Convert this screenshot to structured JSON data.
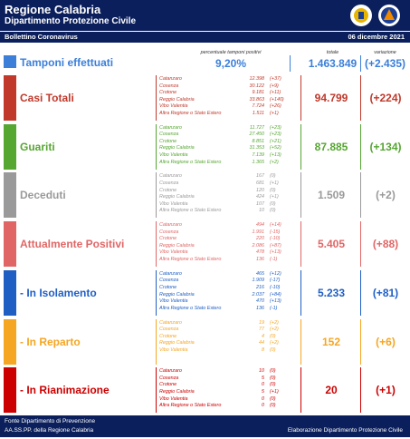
{
  "header": {
    "title": "Regione Calabria",
    "subtitle": "Dipartimento Protezione Civile",
    "bulletin": "Bollettino Coronavirus",
    "date": "06 dicembre 2021"
  },
  "tamponi": {
    "label": "Tamponi effettuati",
    "color": "#3b7fd9",
    "percent_label": "percentuale tamponi positivi",
    "percent": "9,20%",
    "total_label": "totale",
    "total": "1.463.849",
    "change_label": "variazione",
    "change": "(+2.435)"
  },
  "sections": [
    {
      "label": "Casi Totali",
      "color": "#c0392b",
      "total": "94.799",
      "change": "(+224)",
      "rows": [
        {
          "region": "Catanzaro",
          "value": "12.398",
          "change": "(+37)"
        },
        {
          "region": "Cosenza",
          "value": "30.122",
          "change": "(+9)"
        },
        {
          "region": "Crotone",
          "value": "9.181",
          "change": "(+11)"
        },
        {
          "region": "Reggio Calabria",
          "value": "33.863",
          "change": "(+140)"
        },
        {
          "region": "Vibo Valentia",
          "value": "7.724",
          "change": "(+26)"
        },
        {
          "region": "Altra Regione o Stato Estero",
          "value": "1.511",
          "change": "(+1)"
        }
      ]
    },
    {
      "label": "Guariti",
      "color": "#56a632",
      "total": "87.885",
      "change": "(+134)",
      "rows": [
        {
          "region": "Catanzaro",
          "value": "11.727",
          "change": "(+23)"
        },
        {
          "region": "Cosenza",
          "value": "27.450",
          "change": "(+23)"
        },
        {
          "region": "Crotone",
          "value": "8.851",
          "change": "(+21)"
        },
        {
          "region": "Reggio Calabria",
          "value": "31.353",
          "change": "(+52)"
        },
        {
          "region": "Vibo Valentia",
          "value": "7.139",
          "change": "(+13)"
        },
        {
          "region": "Altra Regione o Stato Estero",
          "value": "1.365",
          "change": "(+2)"
        }
      ]
    },
    {
      "label": "Deceduti",
      "color": "#9a9a9a",
      "total": "1.509",
      "change": "(+2)",
      "rows": [
        {
          "region": "Catanzaro",
          "value": "167",
          "change": "(0)"
        },
        {
          "region": "Cosenza",
          "value": "681",
          "change": "(+1)"
        },
        {
          "region": "Crotone",
          "value": "120",
          "change": "(0)"
        },
        {
          "region": "Reggio Calabria",
          "value": "424",
          "change": "(+1)"
        },
        {
          "region": "Vibo Valentia",
          "value": "107",
          "change": "(0)"
        },
        {
          "region": "Altra Regione o Stato Estero",
          "value": "10",
          "change": "(0)"
        }
      ]
    },
    {
      "label": "Attualmente Positivi",
      "color": "#e06666",
      "total": "5.405",
      "change": "(+88)",
      "rows": [
        {
          "region": "Catanzaro",
          "value": "494",
          "change": "(+14)"
        },
        {
          "region": "Cosenza",
          "value": "1.991",
          "change": "(-15)"
        },
        {
          "region": "Crotone",
          "value": "220",
          "change": "(-10)"
        },
        {
          "region": "Reggio Calabria",
          "value": "2.086",
          "change": "(+87)"
        },
        {
          "region": "Vibo Valentia",
          "value": "478",
          "change": "(+13)"
        },
        {
          "region": "Altra Regione o Stato Estero",
          "value": "136",
          "change": "(-1)"
        }
      ]
    },
    {
      "label": "- In Isolamento",
      "color": "#1f5fc4",
      "total": "5.233",
      "change": "(+81)",
      "rows": [
        {
          "region": "Catanzaro",
          "value": "465",
          "change": "(+12)"
        },
        {
          "region": "Cosenza",
          "value": "1.909",
          "change": "(-17)"
        },
        {
          "region": "Crotone",
          "value": "216",
          "change": "(-10)"
        },
        {
          "region": "Reggio Calabria",
          "value": "2.037",
          "change": "(+84)"
        },
        {
          "region": "Vibo Valentia",
          "value": "470",
          "change": "(+13)"
        },
        {
          "region": "Altra Regione o Stato Estero",
          "value": "136",
          "change": "(-1)"
        }
      ]
    },
    {
      "label": "- In Reparto",
      "color": "#f5a623",
      "total": "152",
      "change": "(+6)",
      "rows": [
        {
          "region": "Catanzaro",
          "value": "19",
          "change": "(+2)"
        },
        {
          "region": "Cosenza",
          "value": "77",
          "change": "(+2)"
        },
        {
          "region": "Crotone",
          "value": "4",
          "change": "(0)"
        },
        {
          "region": "Reggio Calabria",
          "value": "44",
          "change": "(+2)"
        },
        {
          "region": "Vibo Valentia",
          "value": "8",
          "change": "(0)"
        }
      ]
    },
    {
      "label": "- In Rianimazione",
      "color": "#cc0000",
      "total": "20",
      "change": "(+1)",
      "rows": [
        {
          "region": "Catanzaro",
          "value": "10",
          "change": "(0)"
        },
        {
          "region": "Cosenza",
          "value": "5",
          "change": "(0)"
        },
        {
          "region": "Crotone",
          "value": "0",
          "change": "(0)"
        },
        {
          "region": "Reggio Calabria",
          "value": "5",
          "change": "(+1)"
        },
        {
          "region": "Vibo Valentia",
          "value": "0",
          "change": "(0)"
        },
        {
          "region": "Altra Regione o Stato Estero",
          "value": "0",
          "change": "(0)"
        }
      ]
    }
  ],
  "footer": {
    "source1": "Fonte Dipartimento di Prevenzione",
    "source2": "AA.SS.PP. della Regione Calabria",
    "credit": "Elaborazione Dipartimento Protezione Civile"
  }
}
